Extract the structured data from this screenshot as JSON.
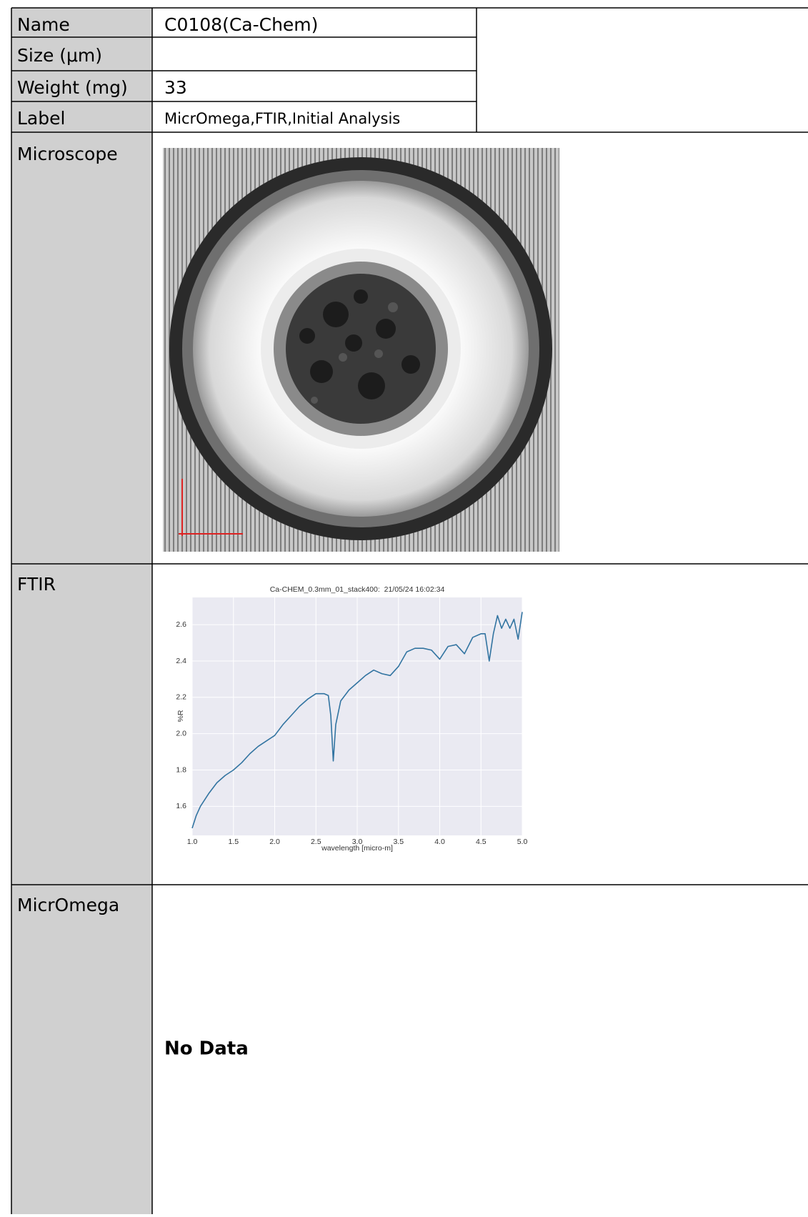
{
  "table": {
    "rows": [
      {
        "label": "Name",
        "value": "C0108(Ca-Chem)"
      },
      {
        "label": "Size (μm)"
      },
      {
        "label": "Weight (mg)",
        "value": 33
      },
      {
        "label": "Label",
        "value": "MicrOmega,FTIR,Initial Analysis"
      },
      {
        "label": "Microscope"
      },
      {
        "label": "FTIR"
      },
      {
        "label": "MicrOmega",
        "value": "No Data"
      }
    ]
  },
  "chart_data": {
    "type": "line",
    "title": "Ca-CHEM_0.3mm_01_stack400:  21/05/24 16:02:34",
    "x_label": "wavelength [micro-m]",
    "y_label": "%R",
    "x": [
      1.0,
      1.05,
      1.1,
      1.2,
      1.3,
      1.4,
      1.5,
      1.6,
      1.7,
      1.8,
      1.9,
      2.0,
      2.1,
      2.2,
      2.3,
      2.4,
      2.5,
      2.6,
      2.65,
      2.68,
      2.71,
      2.74,
      2.8,
      2.9,
      3.0,
      3.1,
      3.2,
      3.3,
      3.4,
      3.5,
      3.6,
      3.7,
      3.8,
      3.9,
      4.0,
      4.1,
      4.2,
      4.3,
      4.4,
      4.5,
      4.55,
      4.6,
      4.65,
      4.7,
      4.75,
      4.8,
      4.85,
      4.9,
      4.95,
      5.0
    ],
    "values": [
      1.48,
      1.55,
      1.6,
      1.67,
      1.73,
      1.77,
      1.8,
      1.84,
      1.89,
      1.93,
      1.96,
      1.99,
      2.05,
      2.1,
      2.15,
      2.19,
      2.22,
      2.22,
      2.21,
      2.1,
      1.85,
      2.05,
      2.18,
      2.24,
      2.28,
      2.32,
      2.35,
      2.33,
      2.32,
      2.37,
      2.45,
      2.47,
      2.47,
      2.46,
      2.41,
      2.48,
      2.49,
      2.44,
      2.53,
      2.55,
      2.55,
      2.4,
      2.55,
      2.65,
      2.58,
      2.63,
      2.58,
      2.63,
      2.52,
      2.67
    ],
    "color": "#3274a1",
    "xlim": [
      1.0,
      5.0
    ],
    "ylim": [
      1.44,
      2.75
    ],
    "xticks": [
      {
        "value": 1,
        "label": "1.0"
      },
      1.5,
      {
        "value": 2,
        "label": "2.0"
      },
      2.5,
      {
        "value": 3,
        "label": "3.0"
      },
      3.5,
      {
        "value": 4,
        "label": "4.0"
      },
      4.5,
      {
        "value": 5,
        "label": "5.0"
      }
    ],
    "yticks": [
      1.6,
      1.8,
      {
        "value": 2,
        "label": "2.0"
      },
      2.2,
      2.4,
      2.6
    ],
    "grid": true
  }
}
